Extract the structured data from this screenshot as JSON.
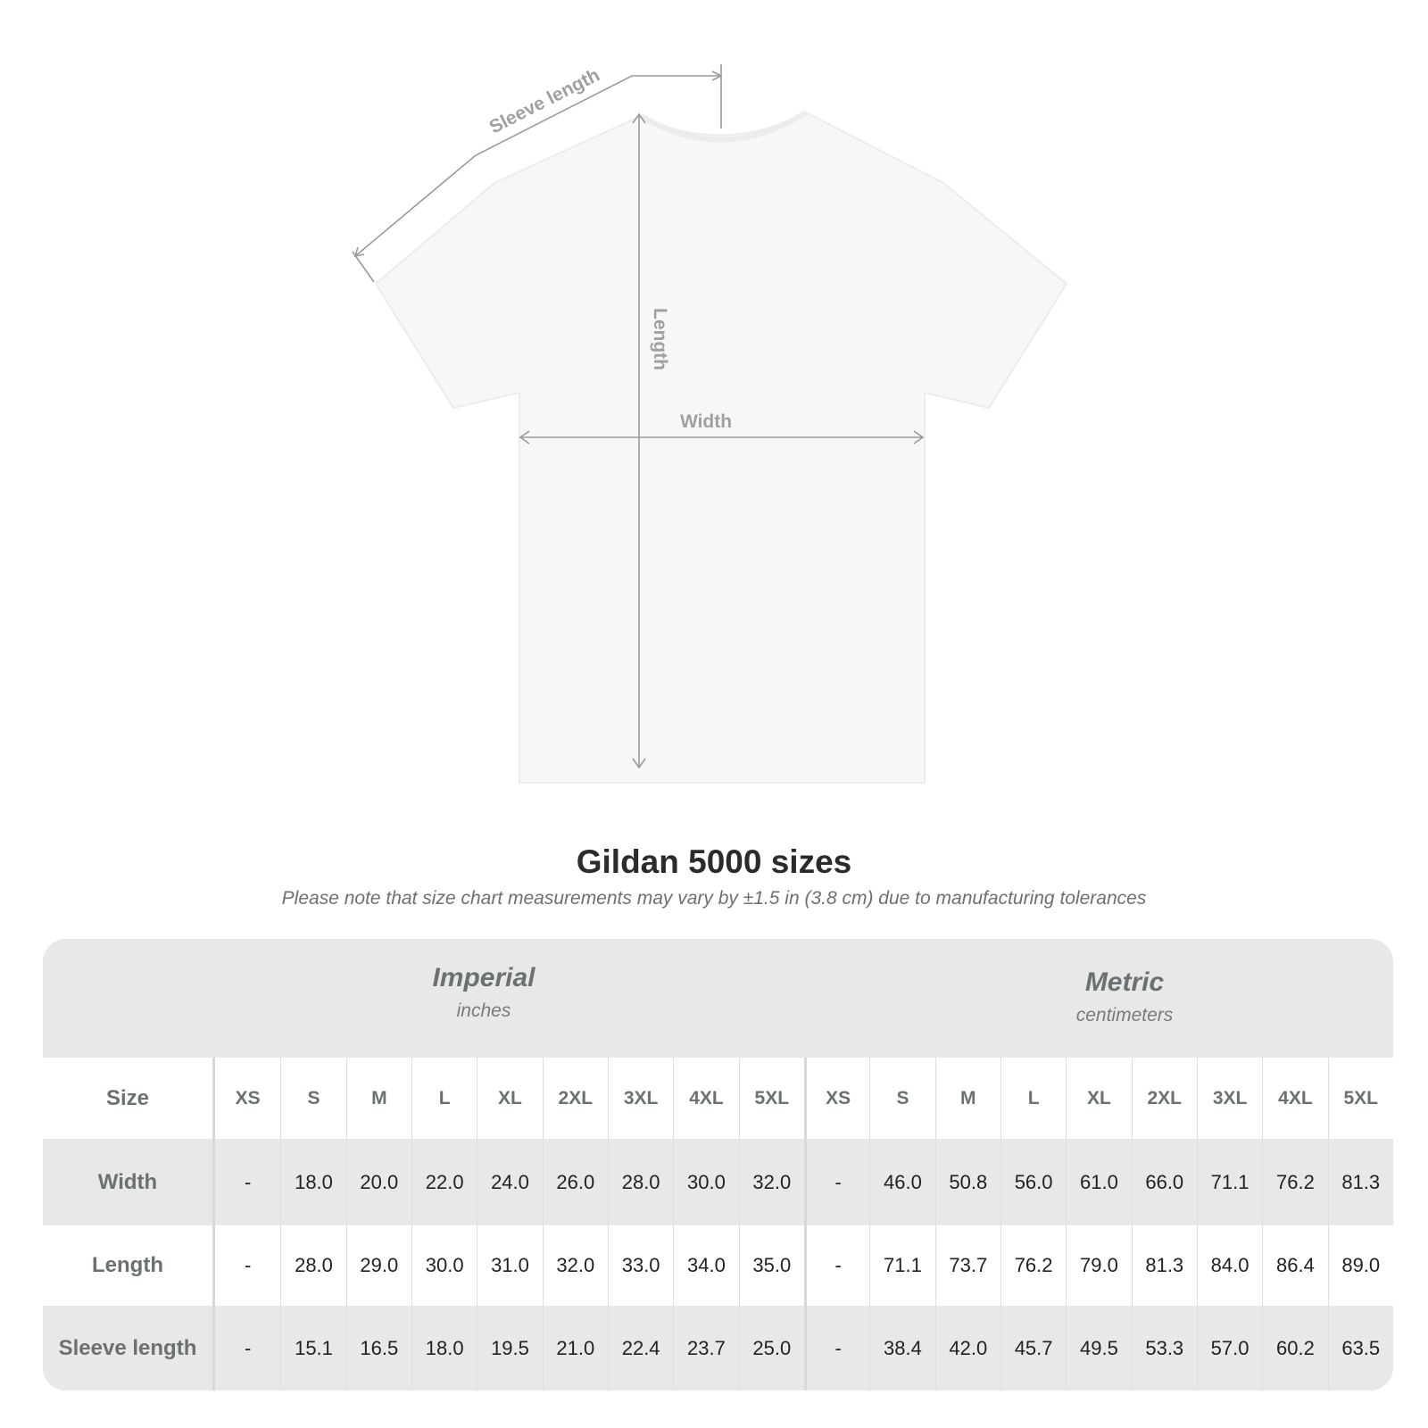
{
  "diagram": {
    "labels": {
      "sleeve": "Sleeve length",
      "length": "Length",
      "width": "Width"
    },
    "shirt_color": "#f7f7f7",
    "line_color": "#9a9a9a"
  },
  "title": "Gildan 5000 sizes",
  "note": "Please note that size chart measurements may vary by ±1.5 in (3.8 cm) due to manufacturing tolerances",
  "table": {
    "imperial": {
      "name": "Imperial",
      "unit": "inches"
    },
    "metric": {
      "name": "Metric",
      "unit": "centimeters"
    },
    "size_label": "Size",
    "sizes": [
      "XS",
      "S",
      "M",
      "L",
      "XL",
      "2XL",
      "3XL",
      "4XL",
      "5XL"
    ],
    "rows": [
      {
        "label": "Width",
        "imperial": [
          "-",
          "18.0",
          "20.0",
          "22.0",
          "24.0",
          "26.0",
          "28.0",
          "30.0",
          "32.0"
        ],
        "metric": [
          "-",
          "46.0",
          "50.8",
          "56.0",
          "61.0",
          "66.0",
          "71.1",
          "76.2",
          "81.3"
        ]
      },
      {
        "label": "Length",
        "imperial": [
          "-",
          "28.0",
          "29.0",
          "30.0",
          "31.0",
          "32.0",
          "33.0",
          "34.0",
          "35.0"
        ],
        "metric": [
          "-",
          "71.1",
          "73.7",
          "76.2",
          "79.0",
          "81.3",
          "84.0",
          "86.4",
          "89.0"
        ]
      },
      {
        "label": "Sleeve length",
        "imperial": [
          "-",
          "15.1",
          "16.5",
          "18.0",
          "19.5",
          "21.0",
          "22.4",
          "23.7",
          "25.0"
        ],
        "metric": [
          "-",
          "38.4",
          "42.0",
          "45.7",
          "49.5",
          "53.3",
          "57.0",
          "60.2",
          "63.5"
        ]
      }
    ]
  }
}
